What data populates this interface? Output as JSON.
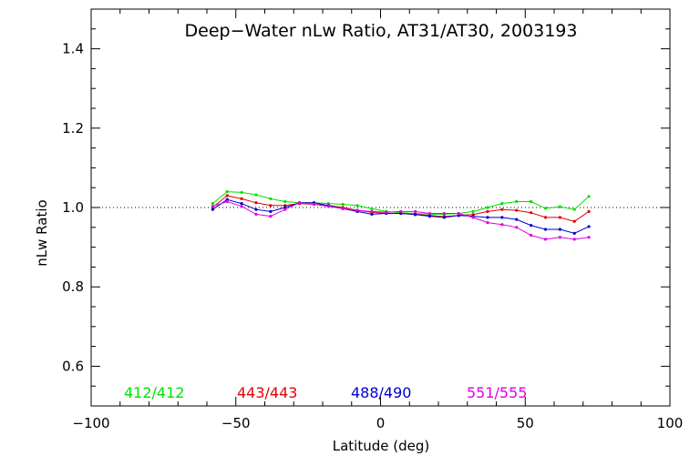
{
  "chart_data": {
    "type": "line",
    "title": "Deep−Water nLw Ratio, AT31/AT30, 2003193",
    "xlabel": "Latitude (deg)",
    "ylabel": "nLw Ratio",
    "xlim": [
      -100,
      100
    ],
    "ylim": [
      0.5,
      1.5
    ],
    "x_ticks": [
      -100,
      -50,
      0,
      50,
      100
    ],
    "x_tick_labels": [
      "−100",
      "−50",
      "0",
      "50",
      "100"
    ],
    "y_ticks": [
      0.6,
      0.8,
      1.0,
      1.2,
      1.4
    ],
    "y_tick_labels": [
      "0.6",
      "0.8",
      "1.0",
      "1.2",
      "1.4"
    ],
    "x_minor_step": 10,
    "y_minor_step": 0.05,
    "reference_line": {
      "y": 1.0,
      "style": "dotted"
    },
    "x": [
      -58,
      -53,
      -48,
      -43,
      -38,
      -33,
      -28,
      -23,
      -18,
      -13,
      -8,
      -3,
      2,
      7,
      12,
      17,
      22,
      27,
      32,
      37,
      42,
      47,
      52,
      57,
      62,
      67,
      72
    ],
    "series": [
      {
        "name": "412/412",
        "color": "#00e000",
        "values": [
          1.01,
          1.04,
          1.038,
          1.032,
          1.022,
          1.015,
          1.012,
          1.012,
          1.01,
          1.008,
          1.005,
          0.997,
          0.99,
          0.987,
          0.985,
          0.983,
          0.983,
          0.985,
          0.99,
          1.0,
          1.01,
          1.015,
          1.015,
          0.998,
          1.002,
          0.995,
          1.028
        ]
      },
      {
        "name": "443/443",
        "color": "#e00000",
        "values": [
          1.0,
          1.03,
          1.022,
          1.012,
          1.005,
          1.005,
          1.01,
          1.008,
          1.005,
          1.0,
          0.993,
          0.988,
          0.985,
          0.985,
          0.983,
          0.98,
          0.977,
          0.98,
          0.982,
          0.99,
          0.995,
          0.993,
          0.987,
          0.975,
          0.975,
          0.965,
          0.99
        ]
      },
      {
        "name": "488/490",
        "color": "#0000cc",
        "values": [
          0.995,
          1.02,
          1.01,
          0.995,
          0.99,
          1.0,
          1.012,
          1.012,
          1.005,
          0.997,
          0.99,
          0.983,
          0.985,
          0.985,
          0.982,
          0.978,
          0.975,
          0.98,
          0.978,
          0.975,
          0.975,
          0.97,
          0.955,
          0.945,
          0.945,
          0.935,
          0.952
        ]
      },
      {
        "name": "551/555",
        "color": "#e000e0",
        "values": [
          1.003,
          1.015,
          1.003,
          0.983,
          0.978,
          0.995,
          1.012,
          1.008,
          1.003,
          0.997,
          0.993,
          0.99,
          0.988,
          0.99,
          0.99,
          0.985,
          0.985,
          0.985,
          0.975,
          0.962,
          0.957,
          0.95,
          0.93,
          0.92,
          0.925,
          0.92,
          0.925
        ]
      }
    ],
    "legend_placement": "bottom inside plot"
  }
}
